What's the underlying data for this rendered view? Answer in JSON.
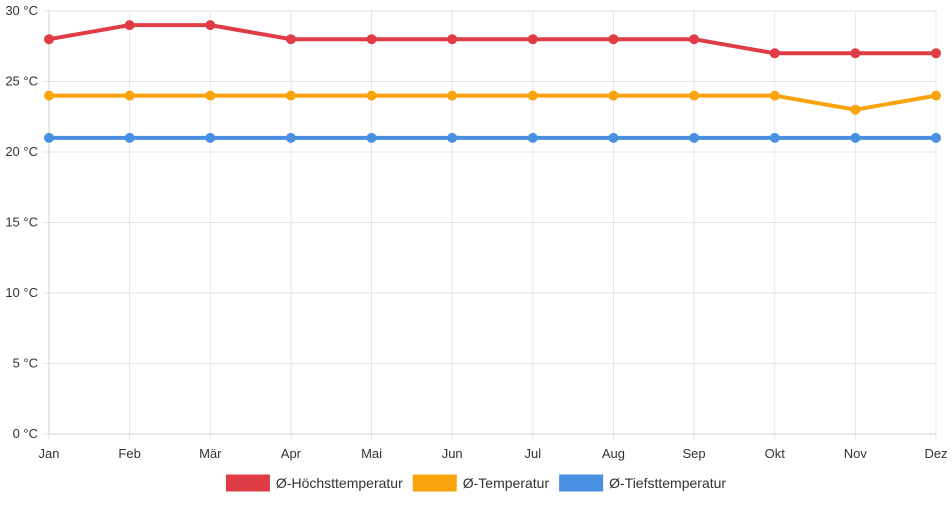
{
  "chart_data": {
    "type": "line",
    "title": "",
    "xlabel": "",
    "ylabel": "",
    "unit_suffix": " °C",
    "categories": [
      "Jan",
      "Feb",
      "Mär",
      "Apr",
      "Mai",
      "Jun",
      "Jul",
      "Aug",
      "Sep",
      "Okt",
      "Nov",
      "Dez"
    ],
    "ylim": [
      0,
      30
    ],
    "yticks": [
      0,
      5,
      10,
      15,
      20,
      25,
      30
    ],
    "ytick_labels": [
      "0 °C",
      "5 °C",
      "10 °C",
      "15 °C",
      "20 °C",
      "25 °C",
      "30 °C"
    ],
    "grid": true,
    "legend_position": "bottom-center",
    "series": [
      {
        "name": "Ø-Höchsttemperatur",
        "color": "#e03c45",
        "values": [
          28,
          29,
          29,
          28,
          28,
          28,
          28,
          28,
          28,
          27,
          27,
          27
        ]
      },
      {
        "name": "Ø-Temperatur",
        "color": "#f9a40e",
        "values": [
          24,
          24,
          24,
          24,
          24,
          24,
          24,
          24,
          24,
          24,
          23,
          24
        ]
      },
      {
        "name": "Ø-Tiefsttemperatur",
        "color": "#4a90e2",
        "values": [
          21,
          21,
          21,
          21,
          21,
          21,
          21,
          21,
          21,
          21,
          21,
          21
        ]
      }
    ]
  }
}
